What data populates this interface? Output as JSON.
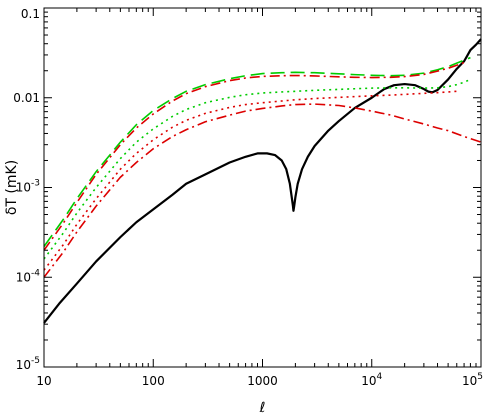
{
  "chart_data": {
    "type": "line",
    "title": "",
    "xlabel": "ℓ",
    "ylabel": "δT  (mK)",
    "x_scale": "log",
    "y_scale": "log",
    "xlim": [
      10,
      100000
    ],
    "ylim": [
      1e-05,
      0.1
    ],
    "grid": false,
    "legend": "none",
    "x_ticks": [
      {
        "label": "10",
        "exp": ""
      },
      {
        "label": "100",
        "exp": ""
      },
      {
        "label": "1000",
        "exp": ""
      },
      {
        "label": "10",
        "exp": "4"
      },
      {
        "label": "10",
        "exp": "5"
      }
    ],
    "y_ticks": [
      {
        "label": "10",
        "exp": "-5"
      },
      {
        "label": "10",
        "exp": "-4"
      },
      {
        "label": "10",
        "exp": "-3"
      },
      {
        "label": "0.01",
        "exp": ""
      },
      {
        "label": "0.1",
        "exp": ""
      }
    ],
    "series": [
      {
        "color": "#000000",
        "style": "solid",
        "points": [
          [
            10,
            3.1e-05
          ],
          [
            14,
            5.2e-05
          ],
          [
            20,
            8.5e-05
          ],
          [
            30,
            0.00015
          ],
          [
            50,
            0.00028
          ],
          [
            70,
            0.00041
          ],
          [
            100,
            0.00057
          ],
          [
            150,
            0.00083
          ],
          [
            200,
            0.0011
          ],
          [
            300,
            0.0014
          ],
          [
            500,
            0.0019
          ],
          [
            700,
            0.0022
          ],
          [
            900,
            0.0024
          ],
          [
            1100,
            0.0024
          ],
          [
            1300,
            0.0023
          ],
          [
            1500,
            0.002
          ],
          [
            1650,
            0.0016
          ],
          [
            1780,
            0.0011
          ],
          [
            1860,
            0.00075
          ],
          [
            1900,
            0.00062
          ],
          [
            1920,
            0.00055
          ],
          [
            1950,
            0.00062
          ],
          [
            2000,
            0.00078
          ],
          [
            2100,
            0.0011
          ],
          [
            2300,
            0.0016
          ],
          [
            2600,
            0.0022
          ],
          [
            3000,
            0.0029
          ],
          [
            4000,
            0.0043
          ],
          [
            5000,
            0.0055
          ],
          [
            7000,
            0.0077
          ],
          [
            10000,
            0.01
          ],
          [
            13000,
            0.0125
          ],
          [
            16000,
            0.0138
          ],
          [
            20000,
            0.0142
          ],
          [
            25000,
            0.0138
          ],
          [
            30000,
            0.0125
          ],
          [
            33000,
            0.0117
          ],
          [
            36000,
            0.0115
          ],
          [
            40000,
            0.0122
          ],
          [
            50000,
            0.016
          ],
          [
            60000,
            0.021
          ],
          [
            70000,
            0.0255
          ],
          [
            75000,
            0.0295
          ],
          [
            80000,
            0.034
          ],
          [
            90000,
            0.039
          ],
          [
            100000,
            0.045
          ]
        ]
      },
      {
        "color": "#00cc00",
        "style": "long-dash",
        "points": [
          [
            10,
            0.00022
          ],
          [
            15,
            0.00044
          ],
          [
            20,
            0.00075
          ],
          [
            30,
            0.0015
          ],
          [
            50,
            0.0032
          ],
          [
            70,
            0.005
          ],
          [
            100,
            0.0072
          ],
          [
            150,
            0.0098
          ],
          [
            200,
            0.0118
          ],
          [
            300,
            0.014
          ],
          [
            500,
            0.0163
          ],
          [
            700,
            0.0176
          ],
          [
            1000,
            0.0186
          ],
          [
            1500,
            0.019
          ],
          [
            2000,
            0.0192
          ],
          [
            3000,
            0.019
          ],
          [
            5000,
            0.0185
          ],
          [
            7000,
            0.0181
          ],
          [
            10000,
            0.0178
          ],
          [
            15000,
            0.0176
          ],
          [
            20000,
            0.0178
          ],
          [
            30000,
            0.0188
          ],
          [
            40000,
            0.0205
          ],
          [
            50000,
            0.0222
          ],
          [
            60000,
            0.0243
          ],
          [
            70000,
            0.0262
          ],
          [
            80000,
            0.028
          ]
        ]
      },
      {
        "color": "#dd0000",
        "style": "dash-dot",
        "points": [
          [
            10,
            0.0002
          ],
          [
            15,
            0.0004
          ],
          [
            20,
            0.00068
          ],
          [
            30,
            0.0014
          ],
          [
            50,
            0.003
          ],
          [
            70,
            0.0046
          ],
          [
            100,
            0.0066
          ],
          [
            150,
            0.0092
          ],
          [
            200,
            0.0111
          ],
          [
            300,
            0.0133
          ],
          [
            500,
            0.0155
          ],
          [
            700,
            0.0166
          ],
          [
            1000,
            0.0173
          ],
          [
            1500,
            0.0176
          ],
          [
            2000,
            0.0177
          ],
          [
            3000,
            0.0175
          ],
          [
            5000,
            0.0171
          ],
          [
            7000,
            0.0169
          ],
          [
            10000,
            0.0168
          ],
          [
            15000,
            0.0169
          ],
          [
            20000,
            0.0172
          ],
          [
            30000,
            0.0182
          ],
          [
            40000,
            0.0198
          ],
          [
            50000,
            0.0213
          ],
          [
            60000,
            0.023
          ],
          [
            70000,
            0.0247
          ]
        ]
      },
      {
        "color": "#00cc00",
        "style": "dotted",
        "points": [
          [
            10,
            0.00016
          ],
          [
            15,
            0.00031
          ],
          [
            20,
            0.00052
          ],
          [
            30,
            0.001
          ],
          [
            50,
            0.0021
          ],
          [
            70,
            0.0032
          ],
          [
            100,
            0.0045
          ],
          [
            150,
            0.0062
          ],
          [
            200,
            0.0074
          ],
          [
            300,
            0.0088
          ],
          [
            500,
            0.0101
          ],
          [
            700,
            0.0108
          ],
          [
            1000,
            0.0113
          ],
          [
            1500,
            0.0116
          ],
          [
            2000,
            0.0118
          ],
          [
            3000,
            0.0121
          ],
          [
            5000,
            0.0124
          ],
          [
            7000,
            0.0126
          ],
          [
            10000,
            0.0128
          ],
          [
            15000,
            0.0129
          ],
          [
            20000,
            0.0129
          ],
          [
            30000,
            0.0128
          ],
          [
            40000,
            0.0129
          ],
          [
            50000,
            0.0133
          ],
          [
            60000,
            0.014
          ],
          [
            70000,
            0.0149
          ],
          [
            80000,
            0.016
          ]
        ]
      },
      {
        "color": "#dd0000",
        "style": "dotted",
        "points": [
          [
            10,
            0.00012
          ],
          [
            15,
            0.00023
          ],
          [
            20,
            0.00039
          ],
          [
            30,
            0.00075
          ],
          [
            50,
            0.0016
          ],
          [
            70,
            0.0024
          ],
          [
            100,
            0.0034
          ],
          [
            150,
            0.0047
          ],
          [
            200,
            0.0056
          ],
          [
            300,
            0.0067
          ],
          [
            500,
            0.0078
          ],
          [
            700,
            0.0084
          ],
          [
            1000,
            0.0088
          ],
          [
            1500,
            0.0092
          ],
          [
            2000,
            0.0095
          ],
          [
            3000,
            0.0098
          ],
          [
            5000,
            0.0101
          ],
          [
            7000,
            0.0103
          ],
          [
            10000,
            0.0105
          ],
          [
            15000,
            0.0107
          ],
          [
            20000,
            0.0109
          ],
          [
            30000,
            0.0112
          ],
          [
            40000,
            0.0114
          ],
          [
            50000,
            0.0116
          ],
          [
            60000,
            0.0118
          ]
        ]
      },
      {
        "color": "#dd0000",
        "style": "dash-dot",
        "points": [
          [
            10,
            0.0001
          ],
          [
            15,
            0.00019
          ],
          [
            20,
            0.00032
          ],
          [
            30,
            0.00062
          ],
          [
            50,
            0.0013
          ],
          [
            70,
            0.0019
          ],
          [
            100,
            0.0027
          ],
          [
            150,
            0.0037
          ],
          [
            200,
            0.0044
          ],
          [
            300,
            0.0054
          ],
          [
            500,
            0.0064
          ],
          [
            700,
            0.0071
          ],
          [
            1000,
            0.0076
          ],
          [
            1500,
            0.0081
          ],
          [
            2000,
            0.0084
          ],
          [
            3000,
            0.0085
          ],
          [
            5000,
            0.0082
          ],
          [
            7000,
            0.0077
          ],
          [
            10000,
            0.0071
          ],
          [
            15000,
            0.0064
          ],
          [
            20000,
            0.0058
          ],
          [
            30000,
            0.0051
          ],
          [
            40000,
            0.0046
          ],
          [
            50000,
            0.0043
          ],
          [
            70000,
            0.0037
          ],
          [
            100000,
            0.0032
          ]
        ]
      }
    ]
  }
}
